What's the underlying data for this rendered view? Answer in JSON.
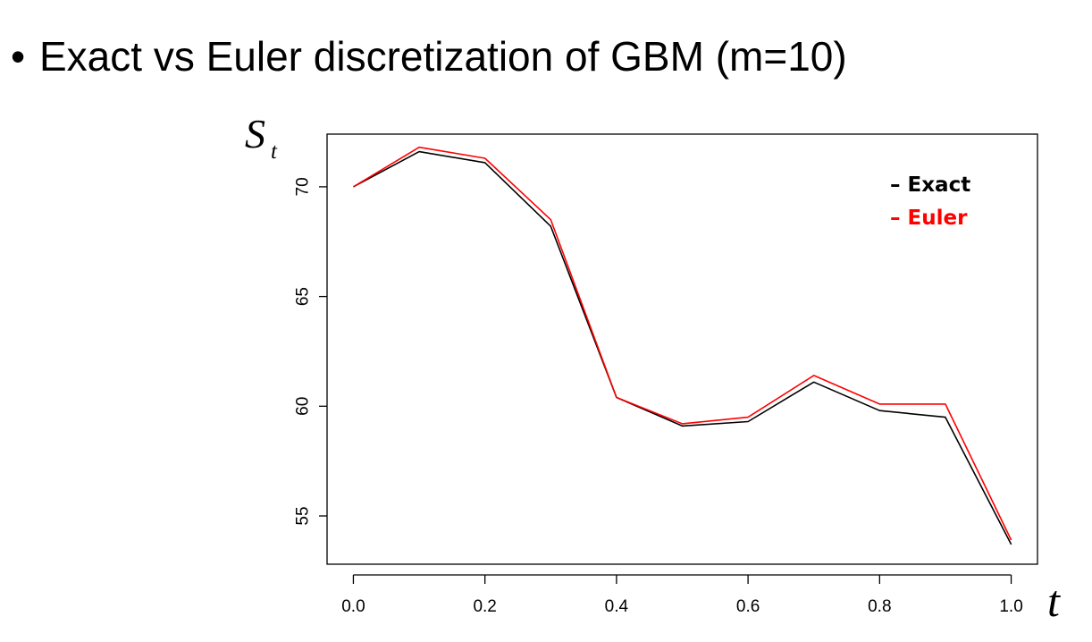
{
  "slide": {
    "title": "Exact vs Euler discretization of GBM (m=10)",
    "bullet": "•"
  },
  "chart_data": {
    "type": "line",
    "title": "",
    "xlabel": "t",
    "ylabel_main": "S",
    "ylabel_sub": "t",
    "xlim": [
      -0.04,
      1.04
    ],
    "ylim": [
      52.8,
      72.4
    ],
    "x_ticks": [
      0.0,
      0.2,
      0.4,
      0.6,
      0.8,
      1.0
    ],
    "x_tick_labels": [
      "0.0",
      "0.2",
      "0.4",
      "0.6",
      "0.8",
      "1.0"
    ],
    "y_ticks": [
      55,
      60,
      65,
      70
    ],
    "y_tick_labels": [
      "55",
      "60",
      "65",
      "70"
    ],
    "x": [
      0.0,
      0.1,
      0.2,
      0.3,
      0.4,
      0.5,
      0.6,
      0.7,
      0.8,
      0.9,
      1.0
    ],
    "series": [
      {
        "name": "Exact",
        "color": "#000000",
        "values": [
          70.0,
          71.6,
          71.1,
          68.2,
          60.4,
          59.1,
          59.3,
          61.1,
          59.8,
          59.5,
          53.7
        ]
      },
      {
        "name": "Euler",
        "color": "#ff0000",
        "values": [
          70.0,
          71.8,
          71.3,
          68.5,
          60.4,
          59.2,
          59.5,
          61.4,
          60.1,
          60.1,
          53.9
        ]
      }
    ],
    "legend_position": "top-right",
    "legend_marker": "–",
    "grid": false
  }
}
